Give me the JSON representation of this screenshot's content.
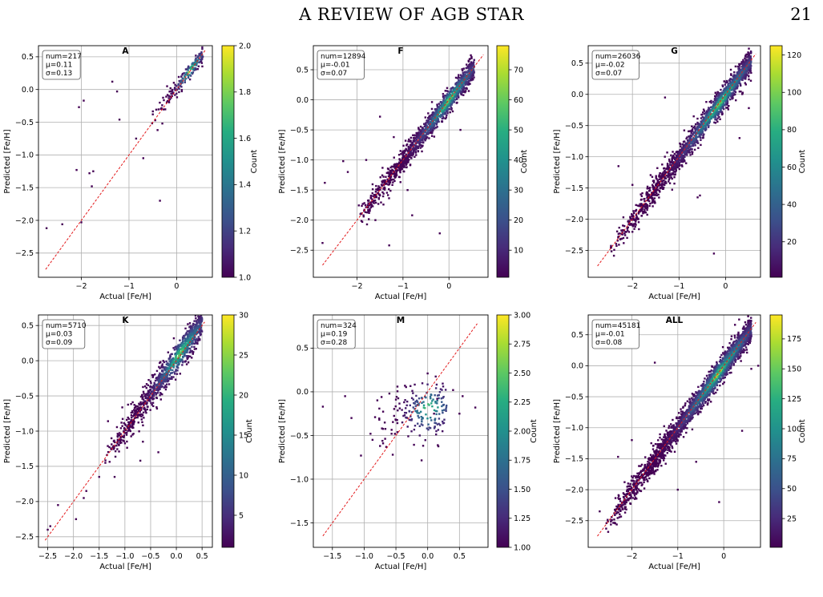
{
  "header": {
    "title": "A REVIEW OF AGB STAR",
    "page_number": "21"
  },
  "chart_data": [
    {
      "type": "scatter",
      "title": "A",
      "xlabel": "Actual [Fe/H]",
      "ylabel": "Predicted [Fe/H]",
      "colorbar_label": "Count",
      "stats": [
        "num=217",
        "μ=0.11",
        "σ=0.13"
      ],
      "xlim": [
        -2.9,
        0.75
      ],
      "ylim": [
        -2.87,
        0.67
      ],
      "xticks": [
        -2,
        -1,
        0
      ],
      "xtick_labels": [
        "−2",
        "−1",
        "0"
      ],
      "yticks": [
        0.5,
        0.0,
        -0.5,
        -1.0,
        -1.5,
        -2.0,
        -2.5
      ],
      "ytick_labels": [
        "0.5",
        "0.0",
        "−0.5",
        "−1.0",
        "−1.5",
        "−2.0",
        "−2.5"
      ],
      "clim": [
        1.0,
        2.0
      ],
      "cticks": [
        1.0,
        1.2,
        1.4,
        1.6,
        1.8,
        2.0
      ],
      "ctick_labels": [
        "1.0",
        "1.2",
        "1.4",
        "1.6",
        "1.8",
        "2.0"
      ],
      "identity_line": [
        -2.75,
        0.6
      ],
      "core": {
        "x_range": [
          -0.6,
          0.55
        ],
        "slope": 0.95,
        "offset": 0.02,
        "scatter": 0.08,
        "n": 180,
        "peak_count": 2
      },
      "points": [
        [
          -2.73,
          -2.12
        ],
        [
          -2.05,
          -0.27
        ],
        [
          -1.95,
          -0.17
        ],
        [
          -2.1,
          -1.23
        ],
        [
          -1.83,
          -1.28
        ],
        [
          -1.78,
          -1.48
        ],
        [
          -2.0,
          -2.03
        ],
        [
          -2.4,
          -2.06
        ],
        [
          -1.75,
          -1.25
        ],
        [
          -1.35,
          0.12
        ],
        [
          -1.25,
          -0.03
        ],
        [
          -1.2,
          -0.46
        ],
        [
          -0.85,
          -0.75
        ],
        [
          -0.7,
          -1.05
        ],
        [
          -0.35,
          -1.7
        ],
        [
          -0.2,
          0.05
        ],
        [
          -0.5,
          -0.38
        ],
        [
          -0.4,
          -0.62
        ],
        [
          -0.3,
          -0.52
        ]
      ]
    },
    {
      "type": "scatter",
      "title": "F",
      "xlabel": "Actual [Fe/H]",
      "ylabel": "Predicted [Fe/H]",
      "colorbar_label": "Count",
      "stats": [
        "num=12894",
        "μ=-0.01",
        "σ=0.07"
      ],
      "xlim": [
        -2.95,
        0.85
      ],
      "ylim": [
        -2.95,
        0.9
      ],
      "xticks": [
        -2,
        -1,
        0
      ],
      "xtick_labels": [
        "−2",
        "−1",
        "0"
      ],
      "yticks": [
        0.5,
        0.0,
        -0.5,
        -1.0,
        -1.5,
        -2.0,
        -2.5
      ],
      "ytick_labels": [
        "0.5",
        "0.0",
        "−0.5",
        "−1.0",
        "−1.5",
        "−2.0",
        "−2.5"
      ],
      "clim": [
        1,
        78
      ],
      "cticks": [
        10,
        20,
        30,
        40,
        50,
        60,
        70
      ],
      "ctick_labels": [
        "10",
        "20",
        "30",
        "40",
        "50",
        "60",
        "70"
      ],
      "identity_line": [
        -2.75,
        0.75
      ],
      "core": {
        "x_range": [
          -2.0,
          0.55
        ],
        "slope": 1.0,
        "offset": -0.01,
        "scatter": 0.12,
        "n": 1400,
        "peak_count": 78
      },
      "points": [
        [
          -2.75,
          -2.38
        ],
        [
          -2.7,
          -1.38
        ],
        [
          -2.3,
          -1.02
        ],
        [
          -2.2,
          -1.2
        ],
        [
          -1.8,
          -1.0
        ],
        [
          -0.2,
          -2.22
        ],
        [
          -1.3,
          -2.42
        ],
        [
          -0.8,
          -1.92
        ],
        [
          -1.5,
          -0.28
        ],
        [
          -1.2,
          -0.62
        ],
        [
          -0.4,
          -0.55
        ],
        [
          0.25,
          -0.5
        ],
        [
          -0.9,
          -1.5
        ],
        [
          -1.6,
          -2.0
        ]
      ]
    },
    {
      "type": "scatter",
      "title": "G",
      "xlabel": "Actual [Fe/H]",
      "ylabel": "Predicted [Fe/H]",
      "colorbar_label": "Count",
      "stats": [
        "num=26036",
        "μ=-0.02",
        "σ=0.07"
      ],
      "xlim": [
        -2.95,
        0.75
      ],
      "ylim": [
        -2.93,
        0.78
      ],
      "xticks": [
        -2,
        -1,
        0
      ],
      "xtick_labels": [
        "−2",
        "−1",
        "0"
      ],
      "yticks": [
        0.5,
        0.0,
        -0.5,
        -1.0,
        -1.5,
        -2.0,
        -2.5
      ],
      "ytick_labels": [
        "0.5",
        "0.0",
        "−0.5",
        "−1.0",
        "−1.5",
        "−2.0",
        "−2.5"
      ],
      "clim": [
        1,
        125
      ],
      "cticks": [
        20,
        40,
        60,
        80,
        100,
        120
      ],
      "ctick_labels": [
        "20",
        "40",
        "60",
        "80",
        "100",
        "120"
      ],
      "identity_line": [
        -2.75,
        0.65
      ],
      "core": {
        "x_range": [
          -2.5,
          0.55
        ],
        "slope": 1.0,
        "offset": -0.02,
        "scatter": 0.12,
        "n": 1800,
        "peak_count": 125
      },
      "points": [
        [
          -2.3,
          -1.15
        ],
        [
          -2.15,
          -2.2
        ],
        [
          -1.3,
          -0.05
        ],
        [
          -0.25,
          -2.55
        ],
        [
          -0.55,
          -1.62
        ],
        [
          -0.6,
          -1.65
        ],
        [
          0.5,
          -0.22
        ],
        [
          0.3,
          -0.7
        ],
        [
          -1.5,
          -1.45
        ],
        [
          -2.0,
          -1.45
        ]
      ]
    },
    {
      "type": "scatter",
      "title": "K",
      "xlabel": "Actual [Fe/H]",
      "ylabel": "Predicted [Fe/H]",
      "colorbar_label": "Count",
      "stats": [
        "num=5710",
        "μ=0.03",
        "σ=0.09"
      ],
      "xlim": [
        -2.68,
        0.7
      ],
      "ylim": [
        -2.65,
        0.65
      ],
      "xticks": [
        -2.5,
        -2.0,
        -1.5,
        -1.0,
        -0.5,
        0.0,
        0.5
      ],
      "xtick_labels": [
        "−2.5",
        "−2.0",
        "−1.5",
        "−1.0",
        "−0.5",
        "0.0",
        "0.5"
      ],
      "yticks": [
        0.5,
        0.0,
        -0.5,
        -1.0,
        -1.5,
        -2.0,
        -2.5
      ],
      "ytick_labels": [
        "0.5",
        "0.0",
        "−0.5",
        "−1.0",
        "−1.5",
        "−2.0",
        "−2.5"
      ],
      "clim": [
        1,
        30
      ],
      "cticks": [
        5,
        10,
        15,
        20,
        25,
        30
      ],
      "ctick_labels": [
        "5",
        "10",
        "15",
        "20",
        "25",
        "30"
      ],
      "identity_line": [
        -2.55,
        0.55
      ],
      "core": {
        "x_range": [
          -1.4,
          0.5
        ],
        "slope": 1.0,
        "offset": 0.03,
        "scatter": 0.14,
        "n": 1000,
        "peak_count": 30
      },
      "points": [
        [
          -2.5,
          -2.4
        ],
        [
          -2.45,
          -2.35
        ],
        [
          -2.3,
          -2.05
        ],
        [
          -1.95,
          -2.25
        ],
        [
          -1.8,
          -1.95
        ],
        [
          -1.75,
          -1.85
        ],
        [
          -1.5,
          -1.65
        ],
        [
          -1.38,
          -1.45
        ],
        [
          -1.2,
          -1.65
        ],
        [
          -0.7,
          -1.42
        ],
        [
          -0.35,
          -1.3
        ],
        [
          -0.65,
          -1.15
        ],
        [
          -0.85,
          -1.05
        ],
        [
          -0.3,
          -0.55
        ]
      ]
    },
    {
      "type": "scatter",
      "title": "M",
      "xlabel": "Actual [Fe/H]",
      "ylabel": "Predicted [Fe/H]",
      "colorbar_label": "Count",
      "stats": [
        "num=324",
        "μ=0.19",
        "σ=0.28"
      ],
      "xlim": [
        -1.8,
        0.95
      ],
      "ylim": [
        -1.78,
        0.88
      ],
      "xticks": [
        -1.5,
        -1.0,
        -0.5,
        0.0,
        0.5
      ],
      "xtick_labels": [
        "−1.5",
        "−1.0",
        "−0.5",
        "0.0",
        "0.5"
      ],
      "yticks": [
        0.5,
        0.0,
        -0.5,
        -1.0,
        -1.5
      ],
      "ytick_labels": [
        "0.5",
        "0.0",
        "−0.5",
        "−1.0",
        "−1.5"
      ],
      "clim": [
        1.0,
        3.0
      ],
      "cticks": [
        1.0,
        1.25,
        1.5,
        1.75,
        2.0,
        2.25,
        2.5,
        2.75,
        3.0
      ],
      "ctick_labels": [
        "1.00",
        "1.25",
        "1.50",
        "1.75",
        "2.00",
        "2.25",
        "2.50",
        "2.75",
        "3.00"
      ],
      "identity_line": [
        -1.65,
        0.78
      ],
      "core": {
        "x_range": [
          -0.95,
          0.3
        ],
        "slope": 0.1,
        "offset": -0.2,
        "scatter": 0.2,
        "n": 200,
        "peak_count": 3
      },
      "points": [
        [
          -1.65,
          -0.17
        ],
        [
          -1.05,
          -0.73
        ],
        [
          -0.9,
          -0.48
        ],
        [
          -1.3,
          -0.05
        ],
        [
          -1.2,
          -0.3
        ],
        [
          0.1,
          -0.25
        ],
        [
          0.15,
          -0.08
        ],
        [
          0.4,
          0.02
        ],
        [
          0.55,
          -0.05
        ],
        [
          0.5,
          -0.25
        ],
        [
          0.75,
          -0.18
        ],
        [
          -0.55,
          -0.72
        ],
        [
          -0.75,
          -0.62
        ]
      ]
    },
    {
      "type": "scatter",
      "title": "ALL",
      "xlabel": "Actual [Fe/H]",
      "ylabel": "Predicted [Fe/H]",
      "colorbar_label": "Count",
      "stats": [
        "num=45181",
        "μ=-0.01",
        "σ=0.08"
      ],
      "xlim": [
        -2.95,
        0.8
      ],
      "ylim": [
        -2.93,
        0.82
      ],
      "xticks": [
        -2,
        -1,
        0
      ],
      "xtick_labels": [
        "−2",
        "−1",
        "0"
      ],
      "yticks": [
        0.5,
        0.0,
        -0.5,
        -1.0,
        -1.5,
        -2.0,
        -2.5
      ],
      "ytick_labels": [
        "0.5",
        "0.0",
        "−0.5",
        "−1.0",
        "−1.5",
        "−2.0",
        "−2.5"
      ],
      "clim": [
        1,
        195
      ],
      "cticks": [
        25,
        50,
        75,
        100,
        125,
        150,
        175
      ],
      "ctick_labels": [
        "25",
        "50",
        "75",
        "100",
        "125",
        "150",
        "175"
      ],
      "identity_line": [
        -2.75,
        0.7
      ],
      "core": {
        "x_range": [
          -2.6,
          0.6
        ],
        "slope": 1.0,
        "offset": -0.01,
        "scatter": 0.13,
        "n": 2300,
        "peak_count": 195
      },
      "points": [
        [
          -2.3,
          -1.47
        ],
        [
          -2.7,
          -2.35
        ],
        [
          -1.5,
          0.05
        ],
        [
          -0.1,
          -2.2
        ],
        [
          0.6,
          -0.05
        ],
        [
          0.75,
          0.0
        ],
        [
          0.4,
          -1.05
        ],
        [
          -0.6,
          -1.55
        ],
        [
          -1.0,
          -2.0
        ],
        [
          -2.0,
          -1.2
        ]
      ]
    }
  ]
}
